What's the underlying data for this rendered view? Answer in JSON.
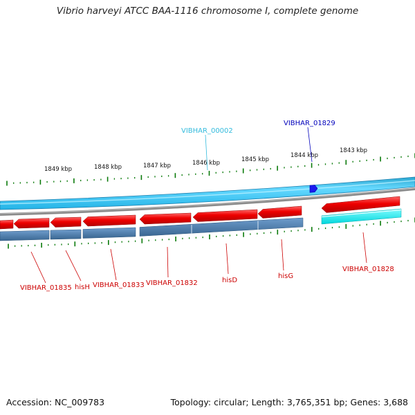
{
  "title": "Vibrio harveyi ATCC BAA-1116 chromosome I, complete genome",
  "footer": {
    "accession": "Accession: NC_009783",
    "stats": "Topology: circular; Length: 3,765,351 bp; Genes: 3,688"
  },
  "kbp_ticks": [
    "1849 kbp",
    "1848 kbp",
    "1847 kbp",
    "1846 kbp",
    "1845 kbp",
    "1844 kbp",
    "1843 kbp"
  ],
  "gene_labels_top": [
    {
      "name": "VIBHAR_00002",
      "color": "#33bbdd"
    },
    {
      "name": "VIBHAR_01829",
      "color": "#0000bb"
    }
  ],
  "gene_labels_bottom": [
    {
      "name": "VIBHAR_01835",
      "color": "#cc0000"
    },
    {
      "name": "hisH",
      "color": "#cc0000"
    },
    {
      "name": "VIBHAR_01833",
      "color": "#cc0000"
    },
    {
      "name": "VIBHAR_01832",
      "color": "#cc0000"
    },
    {
      "name": "hisD",
      "color": "#cc0000"
    },
    {
      "name": "hisG",
      "color": "#cc0000"
    },
    {
      "name": "VIBHAR_01828",
      "color": "#cc0000"
    }
  ],
  "colors": {
    "gene_forward": "#e80000",
    "cds_bar": "#4a7fb0",
    "rna_track": "#33ccff",
    "blue_feature": "#1a1aee",
    "cyan_feature": "#00f0f0",
    "backbone": "#888888",
    "tick": "#0a7a0a"
  }
}
